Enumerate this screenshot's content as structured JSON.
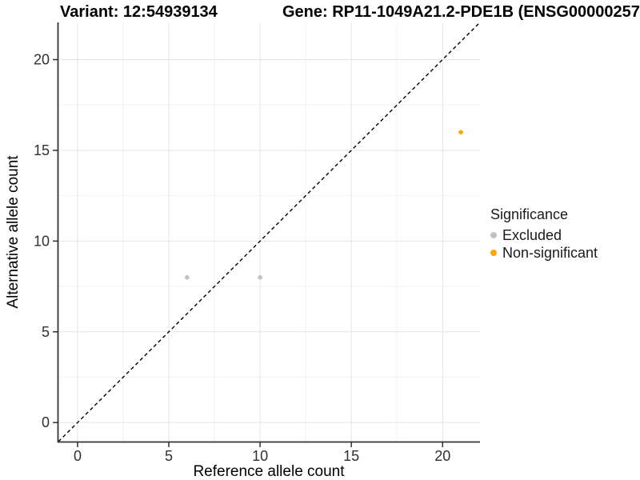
{
  "title": {
    "variant": "Variant: 12:54939134",
    "gene": "Gene: RP11-1049A21.2-PDE1B (ENSG00000257"
  },
  "chart_data": {
    "type": "scatter",
    "xlabel": "Reference allele count",
    "ylabel": "Alternative allele count",
    "x_ticks": [
      0,
      5,
      10,
      15,
      20
    ],
    "y_ticks": [
      0,
      5,
      10,
      15,
      20
    ],
    "minor_ticks": [
      2.5,
      7.5,
      12.5,
      17.5
    ],
    "xlim": [
      -1.05,
      22.05
    ],
    "ylim": [
      -1.05,
      22.05
    ],
    "grid": true,
    "identity_line": {
      "style": "dashed",
      "from": [
        -1.05,
        -1.05
      ],
      "to": [
        22.05,
        22.05
      ],
      "color": "#000000"
    },
    "series": [
      {
        "name": "Excluded",
        "color": "#c2c2c2",
        "points": [
          [
            6,
            8
          ],
          [
            10,
            8
          ]
        ]
      },
      {
        "name": "Non-significant",
        "color": "#ffa500",
        "points": [
          [
            21,
            16
          ]
        ]
      }
    ],
    "legend": {
      "title": "Significance",
      "position": "right",
      "items": [
        {
          "label": "Excluded",
          "color": "#c2c2c2"
        },
        {
          "label": "Non-significant",
          "color": "#ffa500"
        }
      ]
    },
    "colors": {
      "axis_line": "#333333",
      "tick_label": "#303030",
      "major_grid": "#e4e4e4",
      "minor_grid": "#f2f2f2",
      "background": "#ffffff"
    }
  }
}
